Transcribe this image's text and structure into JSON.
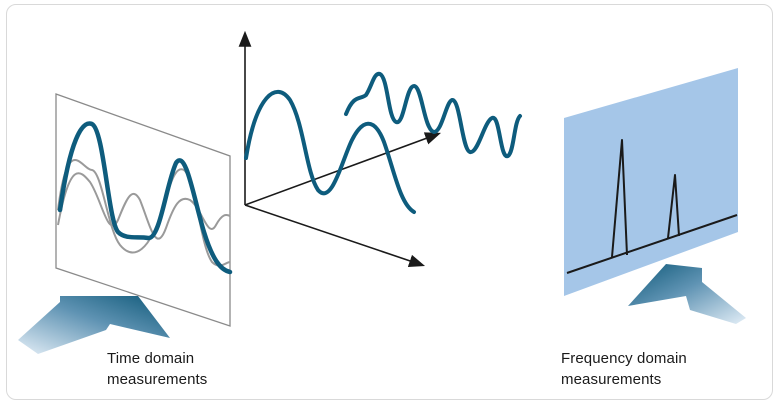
{
  "captions": {
    "time_line1": "Time domain",
    "time_line2": "measurements",
    "freq_line1": "Frequency domain",
    "freq_line2": "measurements"
  },
  "colors": {
    "signal": "#0e5c7d",
    "secondary_wave": "#9a9a9a",
    "frequency_panel": "#a5c6e8",
    "axis": "#1a1a1a",
    "arrow_light": "#dceaf5",
    "arrow_dark": "#0e5878"
  },
  "icons": {
    "time_arrow": "block-arrow-icon",
    "freq_arrow": "block-arrow-icon"
  }
}
